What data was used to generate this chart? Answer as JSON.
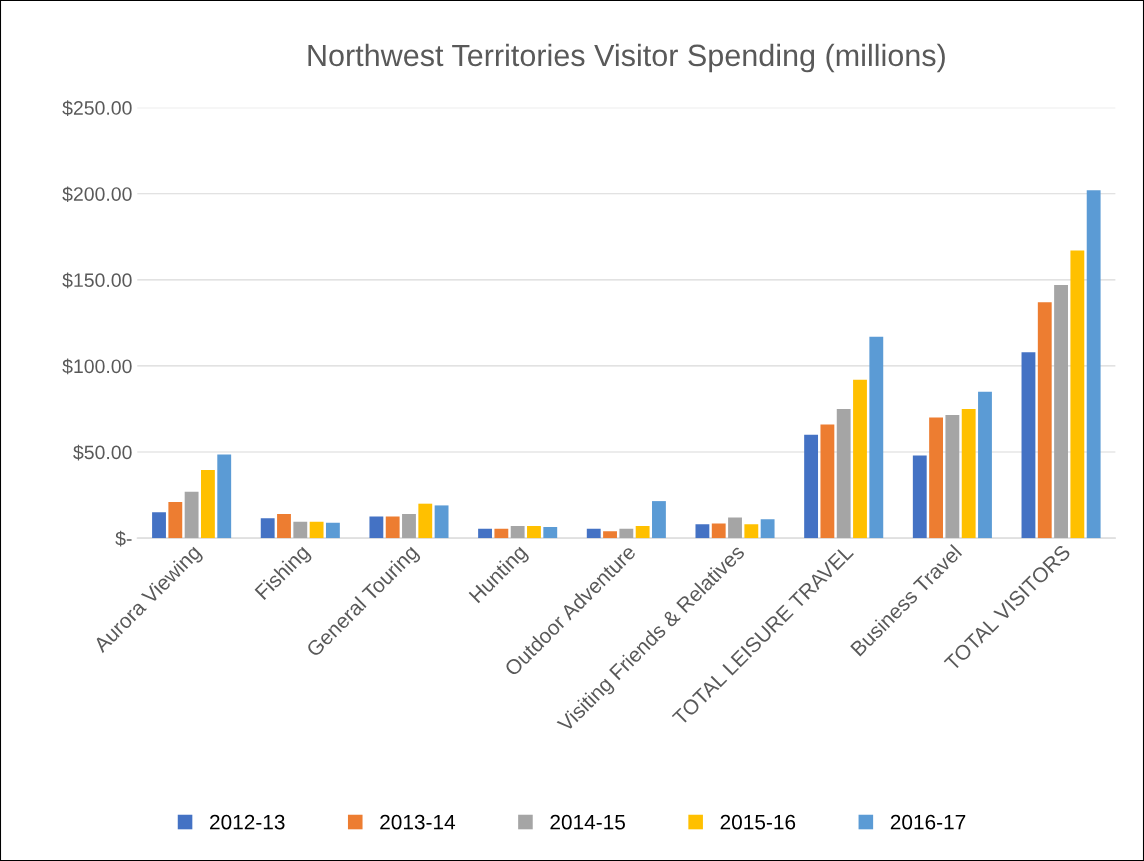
{
  "chart_data": {
    "type": "bar",
    "title": "Northwest Territories Visitor Spending (millions)",
    "categories": [
      "Aurora Viewing",
      "Fishing",
      "General Touring",
      "Hunting",
      "Outdoor Adventure",
      "Visiting Friends & Relatives",
      "TOTAL LEISURE TRAVEL",
      "Business Travel",
      "TOTAL VISITORS"
    ],
    "series": [
      {
        "name": "2012-13",
        "color": "#4472c4",
        "values": [
          15,
          11.5,
          12.5,
          5.5,
          5.5,
          8,
          60,
          48,
          108
        ]
      },
      {
        "name": "2013-14",
        "color": "#ed7d31",
        "values": [
          21,
          14,
          12.5,
          5.5,
          4,
          8.5,
          66,
          70,
          137
        ]
      },
      {
        "name": "2014-15",
        "color": "#a5a5a5",
        "values": [
          27,
          9.5,
          14,
          7,
          5.5,
          12,
          75,
          71.5,
          147
        ]
      },
      {
        "name": "2015-16",
        "color": "#ffc000",
        "values": [
          39.5,
          9.5,
          20,
          7,
          7,
          8,
          92,
          75,
          167
        ]
      },
      {
        "name": "2016-17",
        "color": "#5b9bd5",
        "values": [
          48.5,
          9,
          19,
          6.5,
          21.5,
          11,
          117,
          85,
          202
        ]
      }
    ],
    "ylim": [
      0,
      250
    ],
    "yticks": [
      {
        "value": 0,
        "label": "$-"
      },
      {
        "value": 50,
        "label": "$50.00"
      },
      {
        "value": 100,
        "label": "$100.00"
      },
      {
        "value": 150,
        "label": "$150.00"
      },
      {
        "value": 200,
        "label": "$200.00"
      },
      {
        "value": 250,
        "label": "$250.00"
      }
    ],
    "grid": "y",
    "legend": "bottom"
  }
}
